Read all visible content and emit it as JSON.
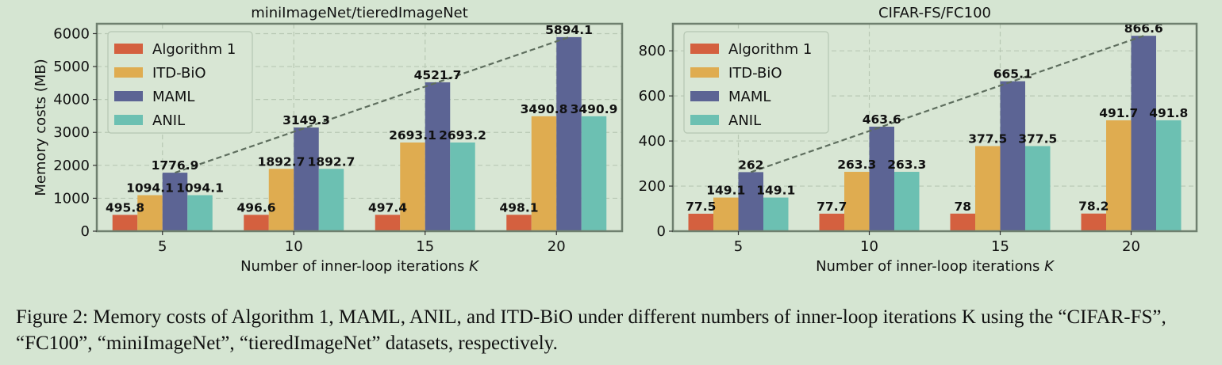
{
  "caption": "Figure 2: Memory costs of Algorithm 1, MAML, ANIL, and ITD-BiO under different numbers of inner-loop iterations K using the “CIFAR-FS”, “FC100”, “miniImageNet”, “tieredImageNet” datasets, respectively.",
  "colors": {
    "background": "#d5e5d2",
    "Algorithm 1": "#d4603f",
    "ITD-BiO": "#dfac50",
    "MAML": "#5c6494",
    "ANIL": "#6cc0b2",
    "trend": "#5e6e5e"
  },
  "chart_data": [
    {
      "type": "bar",
      "title": "miniImageNet/tieredImageNet",
      "xlabel": "Number of inner-loop iterations K",
      "ylabel": "Memory costs (MB)",
      "categories": [
        "5",
        "10",
        "15",
        "20"
      ],
      "ylim": [
        0,
        6300
      ],
      "yticks": [
        0,
        1000,
        2000,
        3000,
        4000,
        5000,
        6000
      ],
      "grid": true,
      "legend_position": "top-left",
      "series": [
        {
          "name": "Algorithm 1",
          "values": [
            495.8,
            496.6,
            497.4,
            498.1
          ]
        },
        {
          "name": "ITD-BiO",
          "values": [
            1094.1,
            1892.7,
            2693.1,
            3490.8
          ]
        },
        {
          "name": "MAML",
          "values": [
            1776.9,
            3149.3,
            4521.7,
            5894.1
          ]
        },
        {
          "name": "ANIL",
          "values": [
            1094.1,
            1892.7,
            2693.2,
            3490.9
          ]
        }
      ],
      "trend_line_series": "MAML"
    },
    {
      "type": "bar",
      "title": "CIFAR-FS/FC100",
      "xlabel": "Number of inner-loop iterations K",
      "ylabel": "",
      "categories": [
        "5",
        "10",
        "15",
        "20"
      ],
      "ylim": [
        0,
        920
      ],
      "yticks": [
        0,
        200,
        400,
        600,
        800
      ],
      "grid": true,
      "legend_position": "top-left",
      "series": [
        {
          "name": "Algorithm 1",
          "values": [
            77.5,
            77.7,
            78,
            78.2
          ]
        },
        {
          "name": "ITD-BiO",
          "values": [
            149.1,
            263.3,
            377.5,
            491.7
          ]
        },
        {
          "name": "MAML",
          "values": [
            262,
            463.6,
            665.1,
            866.6
          ]
        },
        {
          "name": "ANIL",
          "values": [
            149.1,
            263.3,
            377.5,
            491.8
          ]
        }
      ],
      "trend_line_series": "MAML"
    }
  ]
}
